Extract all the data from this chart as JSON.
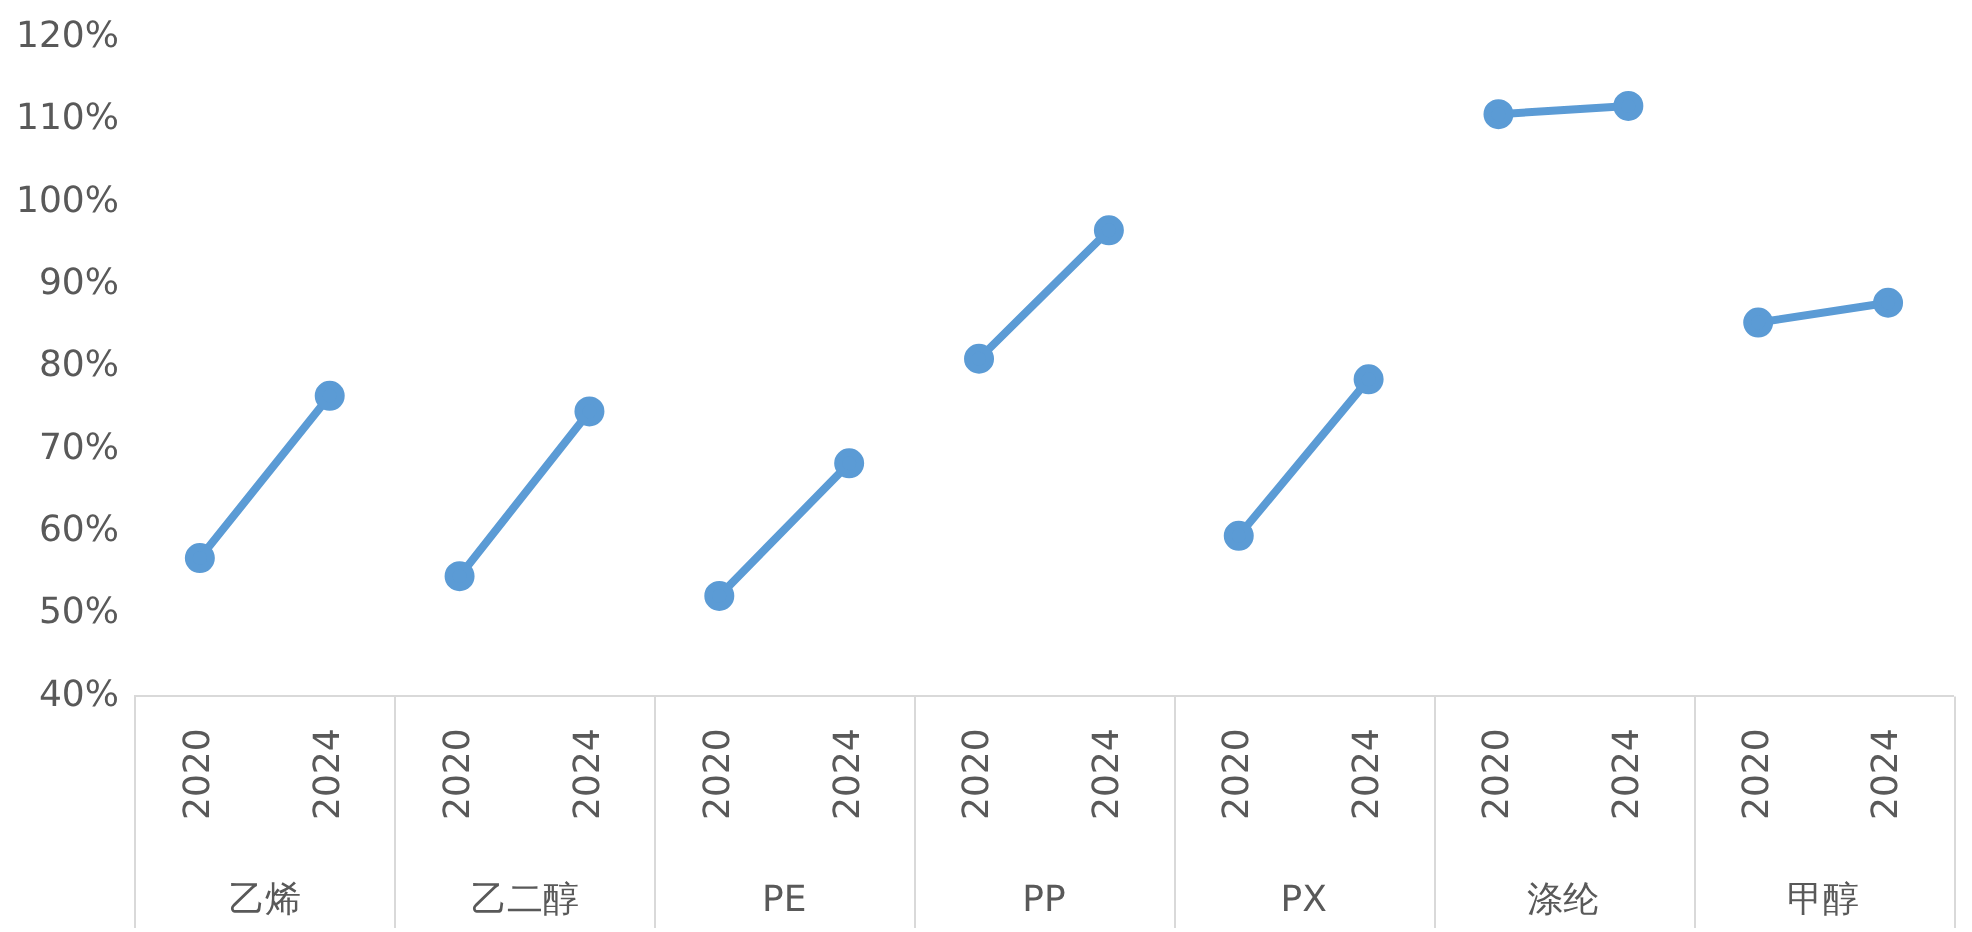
{
  "chart_data": {
    "type": "line",
    "categories": [
      "2020",
      "2024",
      "2020",
      "2024",
      "2020",
      "2024",
      "2020",
      "2024",
      "2020",
      "2024",
      "2020",
      "2024",
      "2020",
      "2024"
    ],
    "annotations": [
      "乙烯",
      "乙二醇",
      "PE",
      "PP",
      "PX",
      "涤纶",
      "甲醇"
    ],
    "ylim": [
      40,
      120
    ],
    "yticks": [
      {
        "value": 40,
        "label": "40%"
      },
      {
        "value": 50,
        "label": "50%"
      },
      {
        "value": 60,
        "label": "60%"
      },
      {
        "value": 70,
        "label": "70%"
      },
      {
        "value": 80,
        "label": "80%"
      },
      {
        "value": 90,
        "label": "90%"
      },
      {
        "value": 100,
        "label": "100%"
      },
      {
        "value": 110,
        "label": "110%"
      },
      {
        "value": 120,
        "label": "120%"
      }
    ],
    "grid": false,
    "legend": false,
    "marker": "circle",
    "line_style": "solid",
    "series": [
      {
        "color": "#5b9bd5",
        "values": [
          56.8,
          76.5,
          null,
          null,
          null,
          null,
          null,
          null,
          null,
          null,
          null,
          null,
          null,
          null
        ]
      },
      {
        "color": "#5b9bd5",
        "values": [
          null,
          null,
          54.6,
          74.6,
          null,
          null,
          null,
          null,
          null,
          null,
          null,
          null,
          null,
          null
        ]
      },
      {
        "color": "#5b9bd5",
        "values": [
          null,
          null,
          null,
          null,
          52.2,
          68.3,
          null,
          null,
          null,
          null,
          null,
          null,
          null,
          null
        ]
      },
      {
        "color": "#5b9bd5",
        "values": [
          null,
          null,
          null,
          null,
          null,
          null,
          81,
          96.6,
          null,
          null,
          null,
          null,
          null,
          null
        ]
      },
      {
        "color": "#5b9bd5",
        "values": [
          null,
          null,
          null,
          null,
          null,
          null,
          null,
          null,
          59.5,
          78.5,
          null,
          null,
          null,
          null
        ]
      },
      {
        "color": "#5b9bd5",
        "values": [
          null,
          null,
          null,
          null,
          null,
          null,
          null,
          null,
          null,
          null,
          110.7,
          111.7,
          null,
          null
        ]
      },
      {
        "color": "#5b9bd5",
        "values": [
          null,
          null,
          null,
          null,
          null,
          null,
          null,
          null,
          null,
          null,
          null,
          null,
          85.4,
          87.8
        ]
      }
    ]
  }
}
